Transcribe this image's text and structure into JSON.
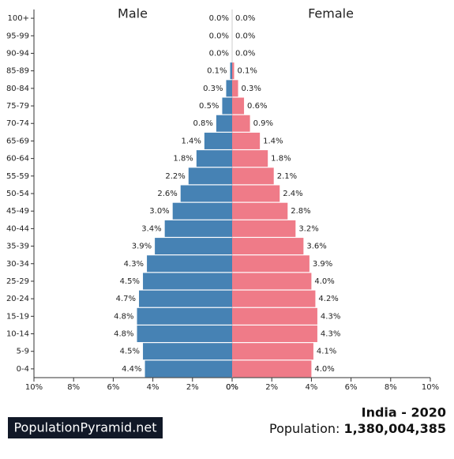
{
  "chart_data": {
    "type": "pyramid",
    "categories": [
      "100+",
      "95-99",
      "90-94",
      "85-89",
      "80-84",
      "75-79",
      "70-74",
      "65-69",
      "60-64",
      "55-59",
      "50-54",
      "45-49",
      "40-44",
      "35-39",
      "30-34",
      "25-29",
      "20-24",
      "15-19",
      "10-14",
      "5-9",
      "0-4"
    ],
    "series": [
      {
        "name": "Male",
        "color": "#4682b4",
        "values": [
          0.0,
          0.0,
          0.0,
          0.1,
          0.3,
          0.5,
          0.8,
          1.4,
          1.8,
          2.2,
          2.6,
          3.0,
          3.4,
          3.9,
          4.3,
          4.5,
          4.7,
          4.8,
          4.8,
          4.5,
          4.4
        ],
        "value_labels": [
          "0.0%",
          "0.0%",
          "0.0%",
          "0.1%",
          "0.3%",
          "0.5%",
          "0.8%",
          "1.4%",
          "1.8%",
          "2.2%",
          "2.6%",
          "3.0%",
          "3.4%",
          "3.9%",
          "4.3%",
          "4.5%",
          "4.7%",
          "4.8%",
          "4.8%",
          "4.5%",
          "4.4%"
        ]
      },
      {
        "name": "Female",
        "color": "#ef7b88",
        "values": [
          0.0,
          0.0,
          0.0,
          0.1,
          0.3,
          0.6,
          0.9,
          1.4,
          1.8,
          2.1,
          2.4,
          2.8,
          3.2,
          3.6,
          3.9,
          4.0,
          4.2,
          4.3,
          4.3,
          4.1,
          4.0
        ],
        "value_labels": [
          "0.0%",
          "0.0%",
          "0.0%",
          "0.1%",
          "0.3%",
          "0.6%",
          "0.9%",
          "1.4%",
          "1.8%",
          "2.1%",
          "2.4%",
          "2.8%",
          "3.2%",
          "3.6%",
          "3.9%",
          "4.0%",
          "4.2%",
          "4.3%",
          "4.3%",
          "4.1%",
          "4.0%"
        ]
      }
    ],
    "xlim": [
      0,
      10
    ],
    "xticks": [
      {
        "value": 0,
        "label": "0%"
      },
      {
        "value": 2,
        "label": "2%"
      },
      {
        "value": 4,
        "label": "4%"
      },
      {
        "value": 6,
        "label": "6%"
      },
      {
        "value": 8,
        "label": "8%"
      },
      {
        "value": 10,
        "label": "10%"
      }
    ],
    "title": "India - 2020",
    "population_label": "Population:",
    "population": "1,380,004,385",
    "brand": "PopulationPyramid.net"
  }
}
